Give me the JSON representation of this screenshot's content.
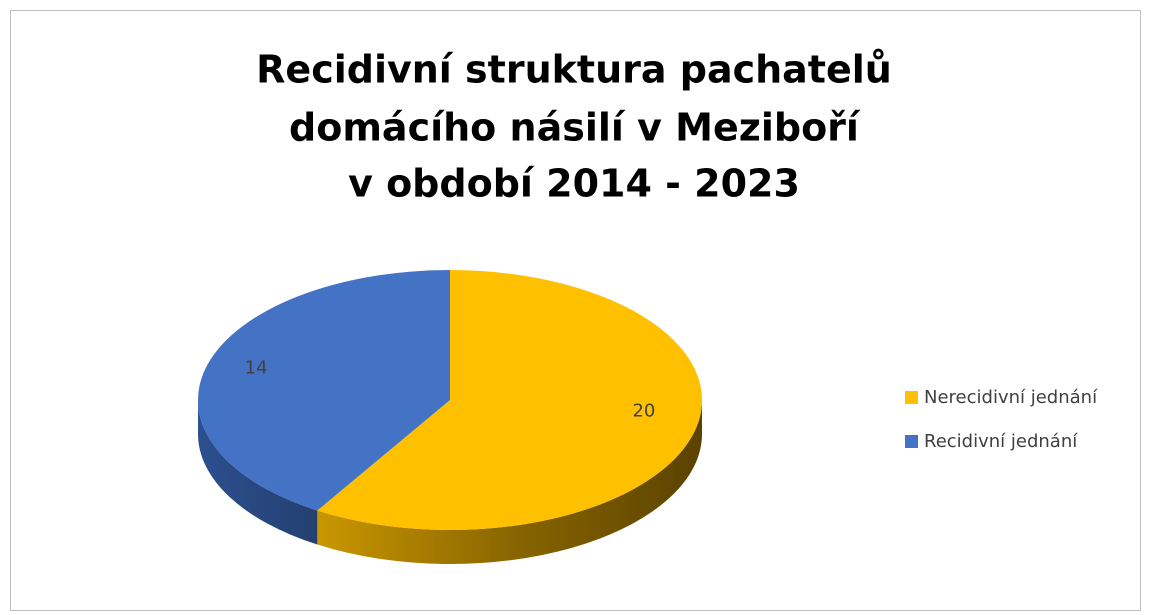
{
  "chart_data": {
    "type": "pie3d",
    "title": [
      "Recidivní struktura pachatelů",
      "domácího násilí v Meziboří",
      "v období 2014 - 2023"
    ],
    "categories": [
      "Nerecidivní jednání",
      "Recidivní jednání"
    ],
    "values": [
      20,
      14
    ],
    "colors": [
      "#FFC000",
      "#4472C4"
    ],
    "legend": "right"
  }
}
